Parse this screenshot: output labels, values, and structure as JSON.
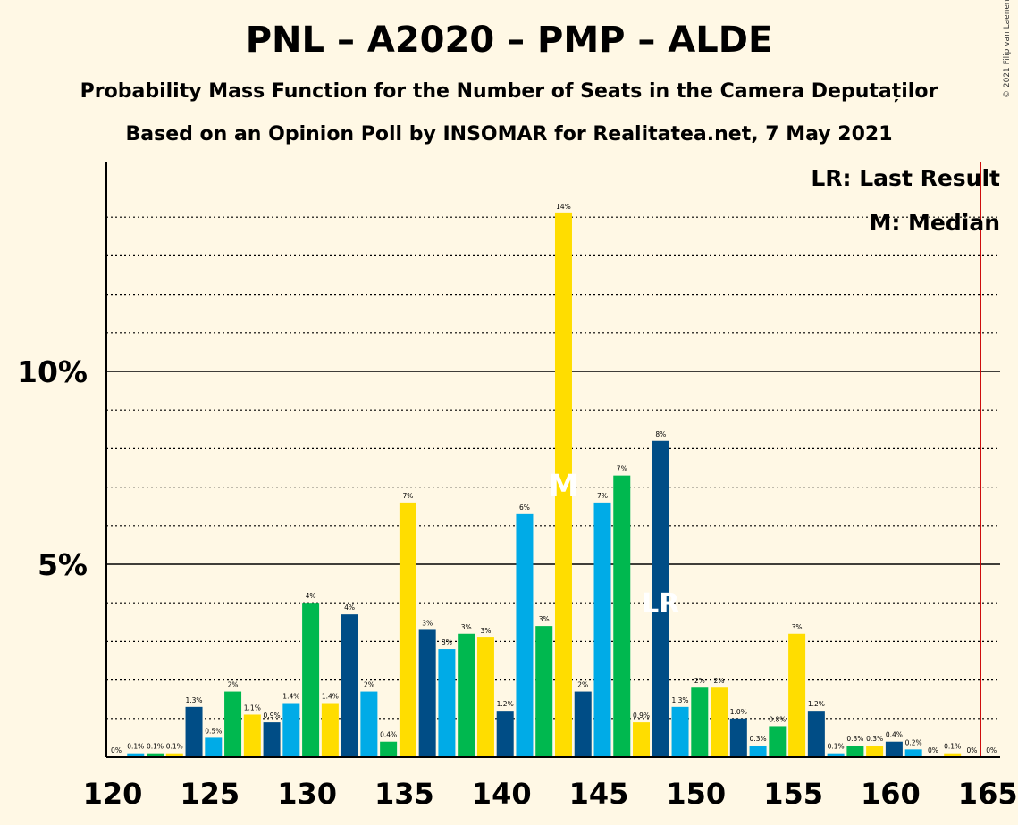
{
  "title": "PNL – A2020 – PMP – ALDE",
  "subtitle1": "Probability Mass Function for the Number of Seats in the Camera Deputaților",
  "subtitle2": "Based on an Opinion Poll by INSOMAR for Realitatea.net, 7 May 2021",
  "copyright": "© 2021 Filip van Laenen",
  "legend": {
    "lr": "LR: Last Result",
    "m": "M: Median"
  },
  "colors": {
    "background": "#FFF8E5",
    "pnl": "#004D86",
    "a2020": "#00ABE7",
    "pmp": "#00B84F",
    "alde": "#FFDD00",
    "majority_line": "#CC0000"
  },
  "chart_data": {
    "type": "bar",
    "xlabel": "",
    "ylabel": "",
    "x": [
      120,
      121,
      122,
      123,
      124,
      125,
      126,
      127,
      128,
      129,
      130,
      131,
      132,
      133,
      134,
      135,
      136,
      137,
      138,
      139,
      140,
      141,
      142,
      143,
      144,
      145,
      146,
      147,
      148,
      149,
      150,
      151,
      152,
      153,
      154,
      155,
      156,
      157,
      158,
      159,
      160,
      161,
      162,
      163,
      164
    ],
    "values": [
      0,
      0.1,
      0.1,
      0.1,
      1.3,
      0.5,
      1.7,
      1.1,
      0.9,
      1.4,
      4.0,
      1.4,
      3.7,
      1.7,
      0.4,
      6.6,
      3.3,
      2.8,
      3.2,
      3.1,
      1.2,
      6.3,
      3.4,
      14.1,
      1.7,
      6.6,
      7.3,
      0.9,
      8.2,
      1.3,
      1.8,
      1.8,
      1.0,
      0.3,
      0.8,
      3.2,
      1.2,
      0.1,
      0.3,
      0.3,
      0.4,
      0.2,
      0.0,
      0.1,
      0.0
    ],
    "labels": [
      "0%",
      "0.1%",
      "0.1%",
      "0.1%",
      "1.3%",
      "0.5%",
      "2%",
      "1.1%",
      "0.9%",
      "1.4%",
      "4%",
      "1.4%",
      "4%",
      "2%",
      "0.4%",
      "7%",
      "3%",
      "3%",
      "3%",
      "3%",
      "1.2%",
      "6%",
      "3%",
      "14%",
      "2%",
      "7%",
      "7%",
      "0.9%",
      "8%",
      "1.3%",
      "2%",
      "2%",
      "1.0%",
      "0.3%",
      "0.8%",
      "3%",
      "1.2%",
      "0.1%",
      "0.3%",
      "0.3%",
      "0.4%",
      "0.2%",
      "0%",
      "0.1%",
      "0%"
    ],
    "color_cycle": [
      "pnl",
      "a2020",
      "pmp",
      "alde"
    ],
    "last_label": "0%",
    "last_label_x": 165,
    "xlim": [
      120,
      165
    ],
    "ylim": [
      0,
      15
    ],
    "x_ticks": [
      120,
      125,
      130,
      135,
      140,
      145,
      150,
      155,
      160,
      165
    ],
    "y_ticks": [
      {
        "value": 5,
        "label": "5%"
      },
      {
        "value": 10,
        "label": "10%"
      }
    ],
    "minor_grid_step": 1,
    "median_x": 143,
    "median_marker": "M",
    "last_result_x": 148,
    "last_result_marker": "LR",
    "majority_x": 165,
    "legend_position": "top-right"
  }
}
